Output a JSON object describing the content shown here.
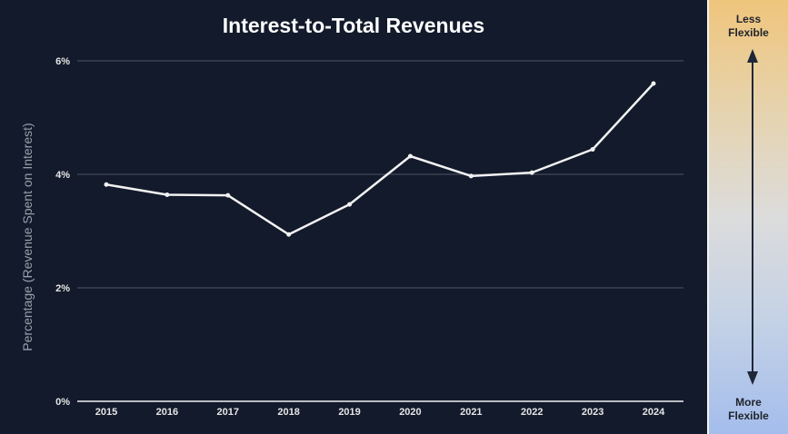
{
  "chart_data": {
    "type": "line",
    "title": "Interest-to-Total Revenues",
    "xlabel": "",
    "ylabel": "Percentage (Revenue Spent on Interest)",
    "categories": [
      "2015",
      "2016",
      "2017",
      "2018",
      "2019",
      "2020",
      "2021",
      "2022",
      "2023",
      "2024"
    ],
    "series": [
      {
        "name": "Interest-to-Total Revenues",
        "values": [
          3.82,
          3.64,
          3.63,
          2.94,
          3.47,
          4.32,
          3.97,
          4.03,
          4.44,
          5.6
        ]
      }
    ],
    "ylim": [
      0,
      6
    ],
    "yticks": [
      0,
      2,
      4,
      6
    ],
    "ytick_labels": [
      "0%",
      "2%",
      "4%",
      "6%"
    ],
    "grid": true,
    "line_color": "#f2f2f2",
    "grid_color": "#3a4150"
  },
  "sidebar": {
    "top_label_line1": "Less",
    "top_label_line2": "Flexible",
    "bottom_label_line1": "More",
    "bottom_label_line2": "Flexible"
  }
}
